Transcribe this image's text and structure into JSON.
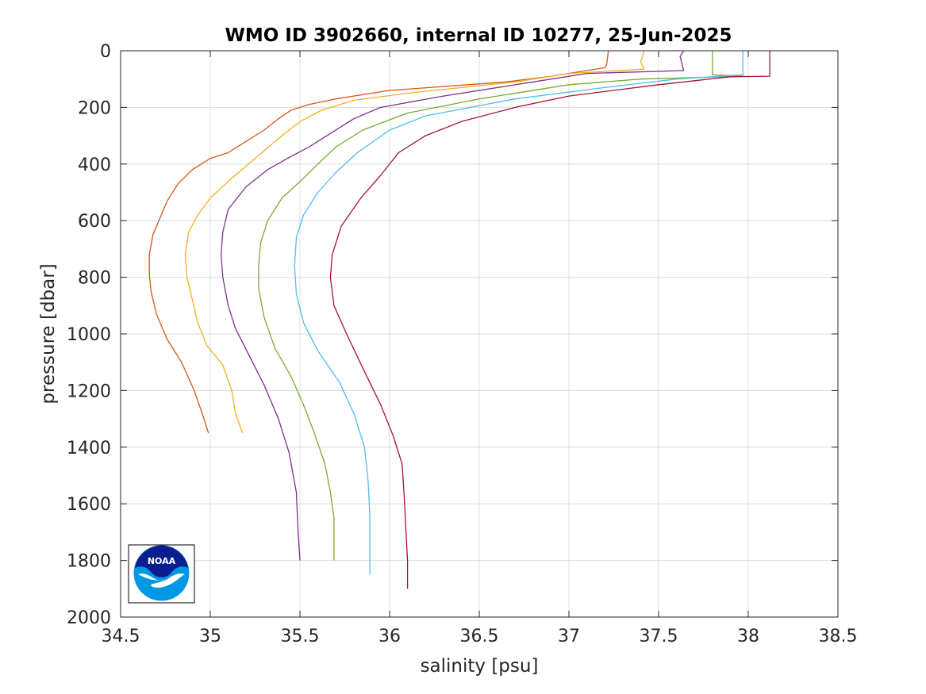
{
  "chart_data": {
    "type": "line",
    "title": "WMO ID 3902660, internal ID 10277, 25-Jun-2025",
    "xlabel": "salinity [psu]",
    "ylabel": "pressure [dbar]",
    "xlim": [
      34.5,
      38.5
    ],
    "ylim": [
      0,
      2000
    ],
    "y_reversed": true,
    "grid": true,
    "legend": "none",
    "xticks": [
      34.5,
      35,
      35.5,
      36,
      36.5,
      37,
      37.5,
      38,
      38.5
    ],
    "xtick_labels": [
      "34.5",
      "35",
      "35.5",
      "36",
      "36.5",
      "37",
      "37.5",
      "38",
      "38.5"
    ],
    "yticks": [
      0,
      200,
      400,
      600,
      800,
      1000,
      1200,
      1400,
      1600,
      1800,
      2000
    ],
    "ytick_labels": [
      "0",
      "200",
      "400",
      "600",
      "800",
      "1000",
      "1200",
      "1400",
      "1600",
      "1800",
      "2000"
    ],
    "series": [
      {
        "color": "#D95319",
        "points": [
          [
            37.22,
            0
          ],
          [
            37.21,
            50
          ],
          [
            37.2,
            60
          ],
          [
            36.9,
            90
          ],
          [
            36.65,
            110
          ],
          [
            36.0,
            140
          ],
          [
            35.7,
            170
          ],
          [
            35.55,
            190
          ],
          [
            35.45,
            210
          ],
          [
            35.38,
            240
          ],
          [
            35.3,
            280
          ],
          [
            35.2,
            320
          ],
          [
            35.1,
            360
          ],
          [
            35.0,
            380
          ],
          [
            34.9,
            420
          ],
          [
            34.82,
            470
          ],
          [
            34.76,
            530
          ],
          [
            34.72,
            590
          ],
          [
            34.68,
            650
          ],
          [
            34.66,
            720
          ],
          [
            34.66,
            790
          ],
          [
            34.67,
            850
          ],
          [
            34.7,
            930
          ],
          [
            34.76,
            1020
          ],
          [
            34.84,
            1100
          ],
          [
            34.91,
            1200
          ],
          [
            34.96,
            1290
          ],
          [
            34.99,
            1350
          ]
        ]
      },
      {
        "color": "#EDB120",
        "points": [
          [
            37.42,
            0
          ],
          [
            37.4,
            40
          ],
          [
            37.42,
            65
          ],
          [
            37.0,
            80
          ],
          [
            36.7,
            110
          ],
          [
            36.1,
            150
          ],
          [
            35.8,
            175
          ],
          [
            35.62,
            210
          ],
          [
            35.5,
            250
          ],
          [
            35.38,
            310
          ],
          [
            35.25,
            380
          ],
          [
            35.12,
            450
          ],
          [
            35.0,
            520
          ],
          [
            34.93,
            580
          ],
          [
            34.88,
            640
          ],
          [
            34.86,
            720
          ],
          [
            34.87,
            800
          ],
          [
            34.9,
            880
          ],
          [
            34.93,
            960
          ],
          [
            34.98,
            1040
          ],
          [
            35.07,
            1110
          ],
          [
            35.12,
            1200
          ],
          [
            35.14,
            1280
          ],
          [
            35.18,
            1350
          ]
        ]
      },
      {
        "color": "#7E2F8E",
        "points": [
          [
            37.64,
            0
          ],
          [
            37.62,
            20
          ],
          [
            37.64,
            70
          ],
          [
            37.1,
            80
          ],
          [
            36.8,
            110
          ],
          [
            36.3,
            160
          ],
          [
            35.95,
            200
          ],
          [
            35.8,
            240
          ],
          [
            35.65,
            300
          ],
          [
            35.55,
            340
          ],
          [
            35.43,
            380
          ],
          [
            35.32,
            420
          ],
          [
            35.2,
            480
          ],
          [
            35.1,
            560
          ],
          [
            35.07,
            640
          ],
          [
            35.06,
            720
          ],
          [
            35.07,
            800
          ],
          [
            35.1,
            900
          ],
          [
            35.14,
            980
          ],
          [
            35.22,
            1080
          ],
          [
            35.3,
            1180
          ],
          [
            35.38,
            1300
          ],
          [
            35.44,
            1420
          ],
          [
            35.48,
            1560
          ],
          [
            35.49,
            1700
          ],
          [
            35.5,
            1800
          ]
        ]
      },
      {
        "color": "#77AC30",
        "points": [
          [
            37.8,
            0
          ],
          [
            37.8,
            85
          ],
          [
            37.98,
            90
          ],
          [
            37.4,
            100
          ],
          [
            37.0,
            120
          ],
          [
            36.5,
            170
          ],
          [
            36.1,
            220
          ],
          [
            35.85,
            280
          ],
          [
            35.7,
            340
          ],
          [
            35.6,
            400
          ],
          [
            35.52,
            450
          ],
          [
            35.4,
            520
          ],
          [
            35.32,
            600
          ],
          [
            35.28,
            680
          ],
          [
            35.27,
            760
          ],
          [
            35.27,
            840
          ],
          [
            35.3,
            940
          ],
          [
            35.36,
            1050
          ],
          [
            35.45,
            1150
          ],
          [
            35.52,
            1250
          ],
          [
            35.58,
            1350
          ],
          [
            35.64,
            1460
          ],
          [
            35.67,
            1560
          ],
          [
            35.69,
            1650
          ],
          [
            35.69,
            1800
          ]
        ]
      },
      {
        "color": "#4DBEEE",
        "points": [
          [
            37.97,
            0
          ],
          [
            37.97,
            85
          ],
          [
            37.6,
            100
          ],
          [
            37.2,
            130
          ],
          [
            36.7,
            170
          ],
          [
            36.2,
            230
          ],
          [
            36.0,
            280
          ],
          [
            35.82,
            360
          ],
          [
            35.7,
            430
          ],
          [
            35.6,
            500
          ],
          [
            35.52,
            580
          ],
          [
            35.48,
            660
          ],
          [
            35.47,
            760
          ],
          [
            35.48,
            860
          ],
          [
            35.52,
            960
          ],
          [
            35.6,
            1060
          ],
          [
            35.72,
            1170
          ],
          [
            35.8,
            1280
          ],
          [
            35.86,
            1400
          ],
          [
            35.88,
            1520
          ],
          [
            35.89,
            1640
          ],
          [
            35.89,
            1750
          ],
          [
            35.89,
            1850
          ]
        ]
      },
      {
        "color": "#A2142F",
        "points": [
          [
            38.12,
            0
          ],
          [
            38.12,
            90
          ],
          [
            37.9,
            92
          ],
          [
            37.5,
            120
          ],
          [
            37.0,
            160
          ],
          [
            36.7,
            200
          ],
          [
            36.4,
            250
          ],
          [
            36.2,
            300
          ],
          [
            36.05,
            360
          ],
          [
            35.95,
            440
          ],
          [
            35.84,
            520
          ],
          [
            35.73,
            620
          ],
          [
            35.68,
            720
          ],
          [
            35.67,
            800
          ],
          [
            35.69,
            900
          ],
          [
            35.76,
            1000
          ],
          [
            35.85,
            1120
          ],
          [
            35.95,
            1250
          ],
          [
            36.02,
            1360
          ],
          [
            36.07,
            1460
          ],
          [
            36.08,
            1560
          ],
          [
            36.09,
            1680
          ],
          [
            36.1,
            1800
          ],
          [
            36.1,
            1900
          ]
        ]
      }
    ]
  },
  "logo": {
    "text": "NOAA",
    "colors": {
      "dark": "#0A1F8F",
      "light": "#0098E5",
      "white": "#ffffff"
    }
  }
}
